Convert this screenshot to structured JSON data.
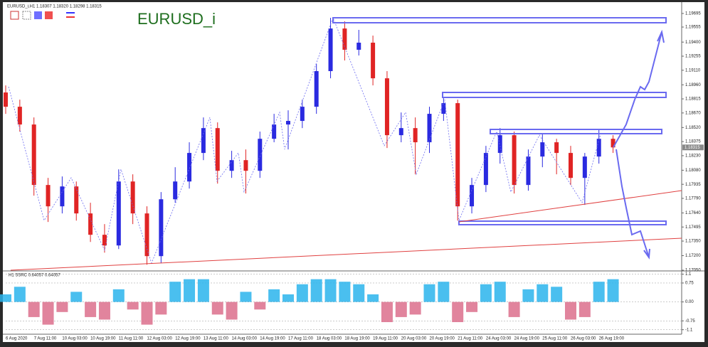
{
  "header": "EURUSD_i,H1  1.18307 1.18320 1.18298 1.18315",
  "chart_data": [
    {
      "type": "candlestick",
      "title": "EURUSD_i",
      "up_color": "#2a2ae0",
      "down_color": "#e02424",
      "categories": [
        "6 Aug 2020",
        null,
        "7 Aug 11:00",
        null,
        "10 Aug 03:00",
        null,
        "10 Aug 19:00",
        null,
        "11 Aug 11:00",
        null,
        "12 Aug 03:00",
        null,
        "12 Aug 19:00",
        null,
        "13 Aug 11:00",
        null,
        "14 Aug 03:00",
        null,
        "14 Aug 19:00",
        null,
        "17 Aug 11:00",
        null,
        "18 Aug 03:00",
        null,
        "18 Aug 19:00",
        null,
        "19 Aug 11:00",
        null,
        "20 Aug 03:00",
        null,
        "20 Aug 19:00",
        null,
        "21 Aug 11:00",
        null,
        "24 Aug 03:00",
        null,
        "24 Aug 19:00",
        null,
        "25 Aug 11:00",
        null,
        "26 Aug 03:00",
        null,
        "26 Aug 19:00",
        null
      ],
      "open": [
        1.18881,
        1.18734,
        1.18551,
        1.17928,
        1.17708,
        1.17913,
        1.17635,
        1.17415,
        1.17305,
        1.17964,
        1.17635,
        1.17195,
        1.17781,
        1.17964,
        1.18258,
        1.18514,
        1.18074,
        1.18184,
        1.18074,
        1.18404,
        1.18551,
        1.18588,
        1.18734,
        1.19101,
        1.1954,
        1.19321,
        1.19394,
        1.19027,
        1.18441,
        1.18514,
        1.18368,
        1.18661,
        1.18771,
        1.17708,
        1.17928,
        1.18258,
        1.18441,
        1.17928,
        1.18221,
        1.18368,
        1.18258,
        1.18001,
        1.18221,
        1.18404
      ],
      "high": [
        1.18954,
        1.18807,
        1.18624,
        1.18001,
        1.18016,
        1.17964,
        1.17745,
        1.17525,
        1.18089,
        1.18038,
        1.17708,
        1.17855,
        1.18111,
        1.18368,
        1.18624,
        1.18573,
        1.1828,
        1.18294,
        1.18478,
        1.18661,
        1.18697,
        1.18807,
        1.19174,
        1.1965,
        1.19614,
        1.19526,
        1.19467,
        1.19101,
        1.18675,
        1.18624,
        1.18734,
        1.18822,
        1.18807,
        1.18001,
        1.18331,
        1.18514,
        1.18478,
        1.18294,
        1.18456,
        1.18404,
        1.18331,
        1.18258,
        1.185,
        1.18441
      ],
      "low": [
        1.18661,
        1.18478,
        1.17818,
        1.17547,
        1.17635,
        1.17561,
        1.17341,
        1.17231,
        1.17268,
        1.17525,
        1.17107,
        1.17122,
        1.17745,
        1.17891,
        1.18184,
        1.17942,
        1.18001,
        1.1784,
        1.18001,
        1.18368,
        1.18294,
        1.18514,
        1.18661,
        1.19027,
        1.19211,
        1.19262,
        1.18954,
        1.18309,
        1.18368,
        1.18038,
        1.18258,
        1.18588,
        1.17561,
        1.17635,
        1.17855,
        1.18148,
        1.1784,
        1.17869,
        1.18111,
        1.18038,
        1.17928,
        1.17723,
        1.18148,
        1.18258
      ],
      "close": [
        1.18734,
        1.18551,
        1.17928,
        1.17708,
        1.17913,
        1.17635,
        1.17415,
        1.17305,
        1.17964,
        1.17635,
        1.17195,
        1.17781,
        1.17964,
        1.18258,
        1.18514,
        1.18074,
        1.18184,
        1.18074,
        1.18404,
        1.18551,
        1.18588,
        1.18734,
        1.19101,
        1.1954,
        1.19321,
        1.19394,
        1.19027,
        1.18441,
        1.18514,
        1.18368,
        1.18661,
        1.18771,
        1.17708,
        1.17928,
        1.18258,
        1.18441,
        1.17928,
        1.18221,
        1.18368,
        1.18258,
        1.18001,
        1.18221,
        1.18404,
        1.18315
      ],
      "current_price": 1.18315,
      "ylim": [
        1.1705,
        1.19775
      ],
      "yticks": [
        1.19695,
        1.19555,
        {
          "value": 1.194,
          "label": "1.19400"
        },
        1.19255,
        {
          "value": 1.1911,
          "label": "1.19110"
        },
        {
          "value": 1.1896,
          "label": "1.18960"
        },
        1.18815,
        {
          "value": 1.1867,
          "label": "1.18670"
        },
        {
          "value": 1.1852,
          "label": "1.18520"
        },
        1.18375,
        {
          "value": 1.1823,
          "label": "1.18230"
        },
        {
          "value": 1.1808,
          "label": "1.18080"
        },
        1.17935,
        {
          "value": 1.1779,
          "label": "1.17790"
        },
        {
          "value": 1.1764,
          "label": "1.17640"
        },
        1.17495,
        {
          "value": 1.1735,
          "label": "1.17350"
        },
        {
          "value": 1.172,
          "label": "1.17200"
        },
        {
          "value": 1.1705,
          "label": "1.17050"
        }
      ]
    },
    {
      "type": "bar",
      "title": "H1 SSRC 0.64057 0.64057",
      "pos_color": "#2ab4ec",
      "neg_color": "#dc6e8c",
      "values": [
        0.3,
        0.6,
        -0.6,
        -0.9,
        -0.4,
        0.4,
        -0.6,
        -0.7,
        0.5,
        -0.3,
        -0.9,
        -0.5,
        0.8,
        0.9,
        0.9,
        -0.5,
        -0.7,
        0.4,
        -0.3,
        0.5,
        0.3,
        0.7,
        0.9,
        0.9,
        0.8,
        0.7,
        0.3,
        -0.8,
        -0.6,
        -0.5,
        0.7,
        0.8,
        -0.8,
        -0.4,
        0.7,
        0.8,
        -0.6,
        0.5,
        0.7,
        0.6,
        -0.7,
        -0.6,
        0.8,
        0.9
      ],
      "ylim": [
        -1.25,
        1.2
      ],
      "yticks": [
        1.1,
        0.75,
        {
          "value": 0,
          "label": "0.00"
        },
        -0.75,
        -1.1
      ]
    }
  ]
}
